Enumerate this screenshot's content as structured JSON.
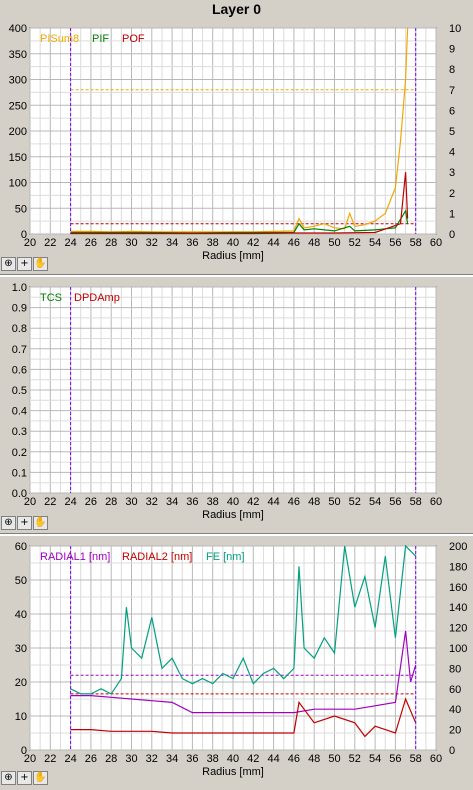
{
  "title": "Layer 0",
  "tools": {
    "zoom_icon": "magnify-icon",
    "cross_icon": "crosshair-icon",
    "pan_icon": "hand-icon"
  },
  "chart_data": [
    {
      "type": "line",
      "xlabel": "Radius [mm]",
      "xlim": [
        20,
        60
      ],
      "xticks": [
        20,
        22,
        24,
        26,
        28,
        30,
        32,
        34,
        36,
        38,
        40,
        42,
        44,
        46,
        48,
        50,
        52,
        54,
        56,
        58,
        60
      ],
      "ylim": [
        0,
        400
      ],
      "yticks": [
        0,
        50,
        100,
        150,
        200,
        250,
        300,
        350,
        400
      ],
      "y2lim": [
        0,
        10
      ],
      "y2ticks": [
        0,
        1,
        2,
        3,
        4,
        5,
        6,
        7,
        8,
        9,
        10
      ],
      "vlines": [
        24,
        58
      ],
      "legend": [
        "PISum8",
        "PIF",
        "POF"
      ],
      "series": [
        {
          "name": "PISum8",
          "color": "#f0a800",
          "axis": "left",
          "x": [
            24,
            26,
            28,
            30,
            32,
            34,
            36,
            38,
            40,
            42,
            44,
            46,
            46.5,
            47,
            48,
            49,
            50,
            51,
            51.5,
            52,
            53,
            54,
            55,
            56,
            56.5,
            57,
            57.2
          ],
          "y": [
            5,
            5,
            4,
            5,
            4,
            4,
            4,
            4,
            4,
            4,
            5,
            6,
            30,
            12,
            15,
            20,
            12,
            10,
            40,
            15,
            18,
            25,
            40,
            90,
            180,
            300,
            400
          ]
        },
        {
          "name": "PIF",
          "color": "#008000",
          "axis": "left",
          "x": [
            24,
            28,
            32,
            36,
            40,
            44,
            46,
            46.5,
            47,
            48,
            50,
            51.5,
            52,
            54,
            56,
            57,
            57.2
          ],
          "y": [
            3,
            3,
            3,
            2,
            3,
            3,
            3,
            20,
            8,
            10,
            6,
            15,
            6,
            8,
            12,
            45,
            20
          ]
        },
        {
          "name": "POF",
          "color": "#c00000",
          "axis": "left",
          "x": [
            24,
            30,
            36,
            42,
            46,
            50,
            54,
            56.5,
            57,
            57.2
          ],
          "y": [
            1,
            1,
            1,
            1,
            2,
            2,
            3,
            20,
            120,
            30
          ]
        }
      ],
      "hlines": [
        {
          "axis": "left",
          "y": 280,
          "color": "#e0b000"
        },
        {
          "axis": "left",
          "y": 20,
          "color": "#c00000"
        }
      ]
    },
    {
      "type": "line",
      "xlabel": "Radius [mm]",
      "xlim": [
        20,
        60
      ],
      "xticks": [
        20,
        22,
        24,
        26,
        28,
        30,
        32,
        34,
        36,
        38,
        40,
        42,
        44,
        46,
        48,
        50,
        52,
        54,
        56,
        58,
        60
      ],
      "ylim": [
        0,
        1
      ],
      "yticks": [
        "0.0",
        "0.1",
        "0.2",
        "0.3",
        "0.4",
        "0.5",
        "0.6",
        "0.7",
        "0.8",
        "0.9",
        "1.0"
      ],
      "vlines": [
        24,
        58
      ],
      "legend": [
        "TCS",
        "DPDAmp"
      ],
      "series": [
        {
          "name": "TCS",
          "color": "#008000",
          "x": [],
          "y": []
        },
        {
          "name": "DPDAmp",
          "color": "#c00000",
          "x": [],
          "y": []
        }
      ]
    },
    {
      "type": "line",
      "xlabel": "Radius [mm]",
      "xlim": [
        20,
        60
      ],
      "xticks": [
        20,
        22,
        24,
        26,
        28,
        30,
        32,
        34,
        36,
        38,
        40,
        42,
        44,
        46,
        48,
        50,
        52,
        54,
        56,
        58,
        60
      ],
      "ylim": [
        0,
        60
      ],
      "yticks": [
        0,
        10,
        20,
        30,
        40,
        50,
        60
      ],
      "y2lim": [
        0,
        200
      ],
      "y2ticks": [
        0,
        20,
        40,
        60,
        80,
        100,
        120,
        140,
        160,
        180,
        200
      ],
      "vlines": [
        24,
        58
      ],
      "legend": [
        "RADIAL1 [nm]",
        "RADIAL2 [nm]",
        "FE [nm]"
      ],
      "series": [
        {
          "name": "RADIAL1 [nm]",
          "color": "#a000c0",
          "axis": "left",
          "x": [
            24,
            26,
            28,
            30,
            32,
            34,
            36,
            38,
            40,
            42,
            44,
            46,
            48,
            50,
            52,
            54,
            56,
            57,
            57.5,
            58
          ],
          "y": [
            16,
            16,
            15.5,
            15,
            14.5,
            14,
            11,
            11,
            11,
            11,
            11,
            11,
            12,
            12,
            12,
            13,
            14,
            35,
            20,
            25
          ]
        },
        {
          "name": "RADIAL2 [nm]",
          "color": "#c00000",
          "axis": "left",
          "x": [
            24,
            26,
            28,
            30,
            32,
            34,
            36,
            38,
            40,
            42,
            44,
            46,
            46.5,
            48,
            50,
            52,
            53,
            54,
            56,
            57,
            58
          ],
          "y": [
            6,
            6,
            5.5,
            5.5,
            5.5,
            5,
            5,
            5,
            5,
            5,
            5,
            5,
            14,
            8,
            10,
            8,
            4,
            7,
            5,
            15,
            8
          ]
        },
        {
          "name": "FE [nm]",
          "color": "#00a080",
          "axis": "right",
          "x": [
            24,
            25,
            26,
            27,
            28,
            29,
            29.5,
            30,
            31,
            32,
            33,
            34,
            35,
            36,
            37,
            38,
            39,
            40,
            41,
            42,
            43,
            44,
            45,
            46,
            46.5,
            47,
            48,
            49,
            50,
            51,
            52,
            53,
            54,
            55,
            56,
            57,
            58
          ],
          "y": [
            60,
            55,
            55,
            60,
            55,
            70,
            140,
            100,
            90,
            130,
            80,
            90,
            70,
            65,
            70,
            65,
            75,
            70,
            90,
            65,
            75,
            80,
            70,
            80,
            180,
            100,
            90,
            110,
            95,
            200,
            140,
            170,
            120,
            190,
            110,
            200,
            190
          ]
        }
      ],
      "hlines": [
        {
          "axis": "left",
          "y": 22,
          "color": "#a000c0"
        },
        {
          "axis": "left",
          "y": 16.5,
          "color": "#c00000"
        }
      ]
    }
  ]
}
